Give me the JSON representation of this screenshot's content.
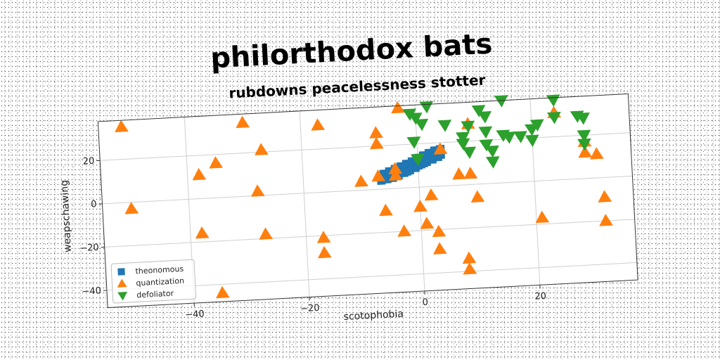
{
  "chart_data": {
    "type": "scatter",
    "title": "philorthodox bats",
    "subtitle": "rubdowns peacelessness stotter",
    "xlabel": "scotophobia",
    "ylabel": "weapschawing",
    "xlim": [
      -55,
      37
    ],
    "ylim": [
      -48,
      38
    ],
    "xticks": [
      -40,
      -20,
      0,
      20
    ],
    "yticks": [
      -40,
      -20,
      0,
      20
    ],
    "grid": true,
    "legend_position": "lower-left",
    "series": [
      {
        "name": "theonomous",
        "marker": "square",
        "color": "#1f77b4",
        "points": [
          [
            -6.5,
            4
          ],
          [
            -6,
            5
          ],
          [
            -5.5,
            6
          ],
          [
            -5,
            5.5
          ],
          [
            -4.5,
            7
          ],
          [
            -4,
            6.5
          ],
          [
            -3.5,
            7.5
          ],
          [
            -3,
            8
          ],
          [
            -2.5,
            8.5
          ],
          [
            -2,
            9
          ],
          [
            -1.5,
            10
          ],
          [
            -1,
            10.5
          ],
          [
            -0.5,
            11
          ],
          [
            0,
            12
          ],
          [
            0.5,
            12.5
          ],
          [
            1,
            13
          ],
          [
            1.5,
            13.5
          ],
          [
            2,
            14
          ],
          [
            2.5,
            14.5
          ],
          [
            3,
            15
          ],
          [
            3.5,
            15.5
          ],
          [
            4,
            16
          ],
          [
            -6,
            7
          ],
          [
            -5,
            8
          ],
          [
            -4,
            9
          ],
          [
            -3,
            10
          ],
          [
            -2,
            11
          ],
          [
            -1,
            12
          ],
          [
            0,
            13.5
          ],
          [
            1,
            14.5
          ],
          [
            2,
            15.5
          ],
          [
            3,
            16.5
          ],
          [
            4,
            17
          ],
          [
            -6.5,
            6
          ],
          [
            -5.5,
            4.5
          ],
          [
            -4.5,
            5
          ],
          [
            -3.5,
            6
          ],
          [
            -2.5,
            7
          ],
          [
            -1.5,
            8
          ],
          [
            -0.5,
            9
          ],
          [
            0.5,
            10.5
          ],
          [
            1.5,
            11.5
          ],
          [
            2.5,
            12.5
          ],
          [
            3.5,
            13.5
          ],
          [
            -3,
            9
          ],
          [
            -1,
            9.5
          ],
          [
            1,
            11
          ],
          [
            3,
            14
          ],
          [
            -2,
            7.5
          ],
          [
            0,
            10
          ],
          [
            2,
            13
          ],
          [
            4,
            14.5
          ]
        ]
      },
      {
        "name": "quantization",
        "marker": "triangle-up",
        "color": "#ff7f0e",
        "points": [
          [
            -51,
            35
          ],
          [
            -50,
            -3
          ],
          [
            -38,
            11
          ],
          [
            -38,
            -16
          ],
          [
            -35,
            16
          ],
          [
            -35,
            -44
          ],
          [
            -30,
            34
          ],
          [
            -28,
            2
          ],
          [
            -27,
            21
          ],
          [
            -27,
            -18
          ],
          [
            -17,
            31
          ],
          [
            -17,
            -21
          ],
          [
            -17,
            -28
          ],
          [
            -10,
            4
          ],
          [
            -7,
            26
          ],
          [
            -7,
            21
          ],
          [
            -7,
            6
          ],
          [
            -6,
            -10
          ],
          [
            -4,
            6
          ],
          [
            -4,
            9
          ],
          [
            -3,
            -20
          ],
          [
            -3,
            37
          ],
          [
            0,
            -9
          ],
          [
            1,
            -17
          ],
          [
            2,
            -4
          ],
          [
            3,
            -21
          ],
          [
            3,
            -29
          ],
          [
            4,
            17
          ],
          [
            7,
            5
          ],
          [
            8,
            -34
          ],
          [
            8,
            -39
          ],
          [
            9,
            28
          ],
          [
            9,
            5
          ],
          [
            10,
            -6
          ],
          [
            21,
            -17
          ],
          [
            24,
            31
          ],
          [
            29,
            17
          ],
          [
            29,
            12
          ],
          [
            31,
            11
          ],
          [
            32,
            -9
          ],
          [
            32,
            -20
          ]
        ]
      },
      {
        "name": "defoliator",
        "marker": "triangle-down",
        "color": "#2ca02c",
        "points": [
          [
            -1,
            34
          ],
          [
            0,
            32
          ],
          [
            1,
            29
          ],
          [
            2,
            37
          ],
          [
            5,
            28
          ],
          [
            -0.5,
            21
          ],
          [
            0,
            13
          ],
          [
            8,
            22
          ],
          [
            8,
            19
          ],
          [
            9,
            27
          ],
          [
            9,
            15
          ],
          [
            11,
            34
          ],
          [
            12,
            31
          ],
          [
            12,
            24
          ],
          [
            12,
            18
          ],
          [
            13,
            15
          ],
          [
            13,
            10
          ],
          [
            15,
            22
          ],
          [
            15,
            38
          ],
          [
            16,
            21
          ],
          [
            18,
            21
          ],
          [
            20,
            24
          ],
          [
            20,
            19
          ],
          [
            21,
            26
          ],
          [
            24,
            37
          ],
          [
            24,
            29
          ],
          [
            28,
            29
          ],
          [
            29,
            28
          ],
          [
            29,
            20
          ],
          [
            29,
            16
          ]
        ]
      }
    ]
  }
}
